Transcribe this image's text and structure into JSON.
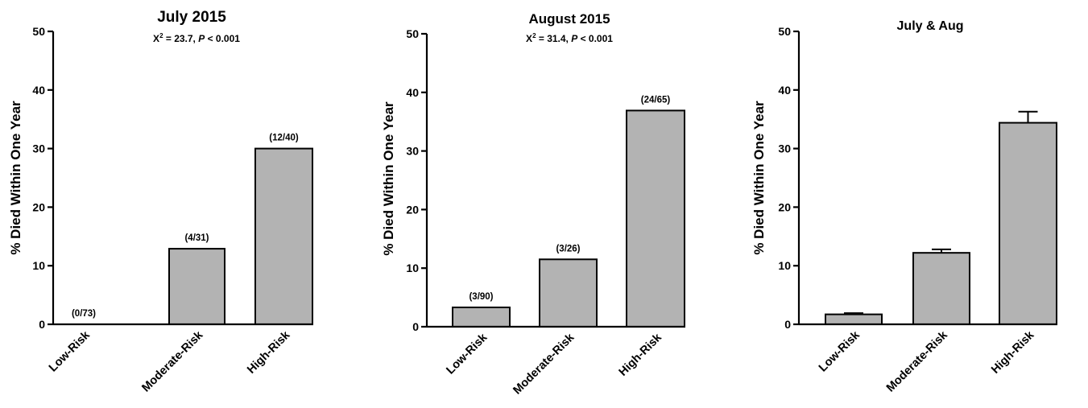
{
  "colors": {
    "bar_fill": "#b3b3b3",
    "axis": "#000000"
  },
  "chart_data": [
    {
      "type": "bar",
      "title": "July 2015",
      "stat": {
        "chi_label": "X",
        "chi_sup": "2",
        "chi_value": " = 23.7, ",
        "p_label": "P",
        "p_value": " < 0.001"
      },
      "ylabel": "% Died Within One Year",
      "ylim": [
        0,
        50
      ],
      "yticks": [
        0,
        10,
        20,
        30,
        40,
        50
      ],
      "categories": [
        "Low-Risk",
        "Moderate-Risk",
        "High-Risk"
      ],
      "values": [
        0,
        12.9,
        30
      ],
      "data_labels": [
        "(0/73)",
        "(4/31)",
        "(12/40)"
      ],
      "errors": null
    },
    {
      "type": "bar",
      "title": "August 2015",
      "stat": {
        "chi_label": "X",
        "chi_sup": "2",
        "chi_value": " = 31.4, ",
        "p_label": "P",
        "p_value": " < 0.001"
      },
      "ylabel": "% Died Within One Year",
      "ylim": [
        0,
        50
      ],
      "yticks": [
        0,
        10,
        20,
        30,
        40,
        50
      ],
      "categories": [
        "Low-Risk",
        "Moderate-Risk",
        "High-Risk"
      ],
      "values": [
        3.3,
        11.5,
        36.9
      ],
      "data_labels": [
        "(3/90)",
        "(3/26)",
        "(24/65)"
      ],
      "errors": null
    },
    {
      "type": "bar",
      "title": "July & Aug",
      "stat": null,
      "ylabel": "% Died Within One Year",
      "ylim": [
        0,
        50
      ],
      "yticks": [
        0,
        10,
        20,
        30,
        40,
        50
      ],
      "categories": [
        "Low-Risk",
        "Moderate-Risk",
        "High-Risk"
      ],
      "values": [
        1.7,
        12.2,
        34.4
      ],
      "data_labels": null,
      "errors": [
        0.2,
        0.6,
        1.9
      ]
    }
  ]
}
